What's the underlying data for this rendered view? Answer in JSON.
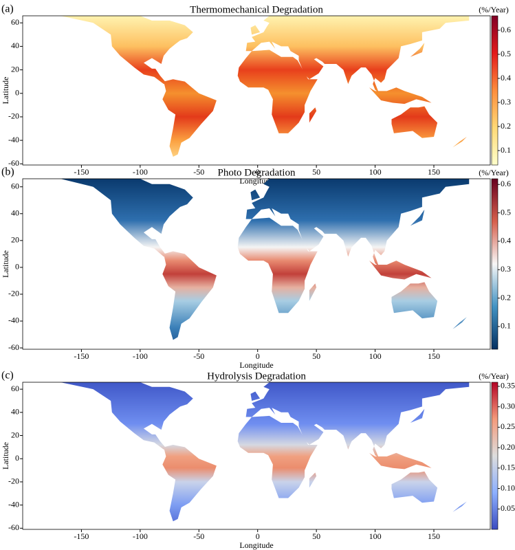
{
  "chart_data": [
    {
      "type": "map",
      "panel_label": "(a)",
      "title": "Thermomechanical Degradation",
      "xlabel": "Longitude",
      "ylabel": "Latitude",
      "xlim": [
        -200,
        198
      ],
      "ylim": [
        -61,
        66
      ],
      "xticks": [
        -150,
        -100,
        -50,
        0,
        50,
        100,
        150
      ],
      "yticks": [
        -60,
        -40,
        -20,
        0,
        20,
        40,
        60
      ],
      "colorbar": {
        "label": "(%/Year)",
        "lim": [
          0.04,
          0.66
        ],
        "ticks": [
          0.1,
          0.2,
          0.3,
          0.4,
          0.5,
          0.6
        ],
        "colormap": [
          "#ffffcc",
          "#fed976",
          "#fd8d3c",
          "#e31a1c",
          "#800026"
        ]
      }
    },
    {
      "type": "map",
      "panel_label": "(b)",
      "title": "Photo Degradation",
      "xlabel": "Longitude",
      "ylabel": "Latitude",
      "xlim": [
        -200,
        198
      ],
      "ylim": [
        -61,
        66
      ],
      "xticks": [
        -150,
        -100,
        -50,
        0,
        50,
        100,
        150
      ],
      "yticks": [
        -60,
        -40,
        -20,
        0,
        20,
        40,
        60
      ],
      "colorbar": {
        "label": "(%/Year)",
        "lim": [
          0.02,
          0.62
        ],
        "ticks": [
          0.1,
          0.2,
          0.3,
          0.4,
          0.5,
          0.6
        ],
        "colormap": [
          "#053061",
          "#4393c3",
          "#f7f7f7",
          "#d6604d",
          "#67001f"
        ]
      }
    },
    {
      "type": "map",
      "panel_label": "(c)",
      "title": "Hydrolysis Degradation",
      "xlabel": "Longitude",
      "ylabel": "Latitude",
      "xlim": [
        -200,
        198
      ],
      "ylim": [
        -61,
        66
      ],
      "xticks": [
        -150,
        -100,
        -50,
        0,
        50,
        100,
        150
      ],
      "yticks": [
        -60,
        -40,
        -20,
        0,
        20,
        40,
        60
      ],
      "colorbar": {
        "label": "(%/Year)",
        "lim": [
          0.0,
          0.36
        ],
        "ticks": [
          0.05,
          {
            "value": 0.1,
            "label": "0.10"
          },
          0.15,
          {
            "value": 0.2,
            "label": "0.20"
          },
          0.25,
          {
            "value": 0.3,
            "label": "0.30"
          },
          0.35
        ],
        "colormap": [
          "#3b4cc0",
          "#8db0fe",
          "#dddddd",
          "#f49a7b",
          "#b40426"
        ]
      }
    }
  ]
}
